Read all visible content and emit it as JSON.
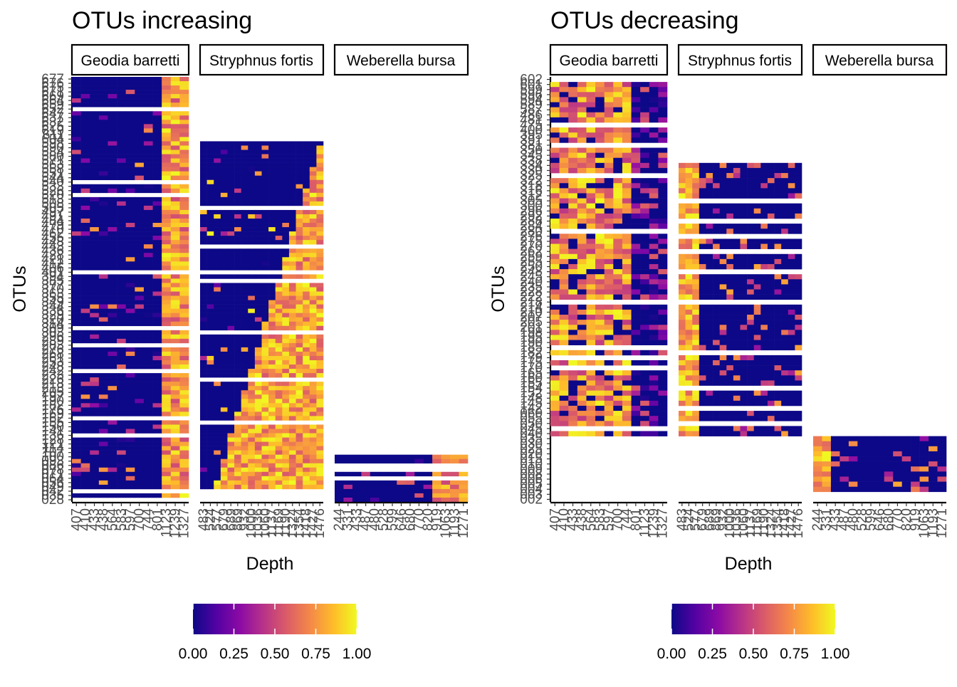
{
  "panels": [
    {
      "title": "OTUs increasing",
      "xlabel": "Depth",
      "ylabel": "OTUs",
      "facets": [
        {
          "label": "Geodia barretti",
          "depths": [
            "407",
            "410",
            "433",
            "438",
            "564",
            "583",
            "597",
            "700",
            "744",
            "801",
            "1123",
            "1239",
            "1327"
          ]
        },
        {
          "label": "Stryphnus fortis",
          "depths": [
            "483",
            "524",
            "577",
            "679",
            "689",
            "869",
            "932",
            "1000",
            "1036",
            "1060",
            "1137",
            "1169",
            "1190",
            "1324",
            "1354",
            "1418",
            "1427",
            "1476"
          ]
        },
        {
          "label": "Weberella bursa",
          "depths": [
            "244",
            "331",
            "433",
            "487",
            "480",
            "528",
            "599",
            "646",
            "680",
            "770",
            "820",
            "919",
            "1063",
            "1193",
            "1271"
          ]
        }
      ],
      "y_ticks": [
        "677",
        "676",
        "675",
        "671",
        "669",
        "664",
        "659",
        "652",
        "647",
        "637",
        "632",
        "625",
        "619",
        "611",
        "604",
        "598",
        "590",
        "584",
        "580",
        "571",
        "563",
        "558",
        "551",
        "544",
        "540",
        "533",
        "526",
        "520",
        "513",
        "508",
        "505",
        "497",
        "491",
        "484",
        "479",
        "470",
        "462",
        "455",
        "448",
        "443",
        "436",
        "428",
        "421",
        "412",
        "406",
        "401",
        "394",
        "385",
        "377",
        "370",
        "363",
        "355",
        "349",
        "344",
        "336",
        "329",
        "320",
        "314",
        "309",
        "303",
        "296",
        "289",
        "283",
        "276",
        "268",
        "261",
        "253",
        "248",
        "242",
        "233",
        "226",
        "218",
        "213",
        "205",
        "197",
        "190",
        "182",
        "176",
        "169",
        "162",
        "155",
        "150",
        "141",
        "136",
        "128",
        "121",
        "114",
        "107",
        "100",
        "093",
        "086",
        "078",
        "071",
        "064",
        "056",
        "049",
        "042",
        "035",
        "028"
      ]
    },
    {
      "title": "OTUs decreasing",
      "xlabel": "Depth",
      "ylabel": "OTUs",
      "facets": [
        {
          "label": "Geodia barretti",
          "depths": [
            "407",
            "410",
            "433",
            "438",
            "564",
            "583",
            "597",
            "700",
            "744",
            "801",
            "1123",
            "1239",
            "1327"
          ]
        },
        {
          "label": "Stryphnus fortis",
          "depths": [
            "483",
            "524",
            "577",
            "679",
            "689",
            "869",
            "932",
            "1000",
            "1036",
            "1060",
            "1137",
            "1169",
            "1190",
            "1324",
            "1354",
            "1418",
            "1427",
            "1476"
          ]
        },
        {
          "label": "Weberella bursa",
          "depths": [
            "244",
            "331",
            "433",
            "487",
            "480",
            "528",
            "599",
            "646",
            "680",
            "770",
            "820",
            "919",
            "1063",
            "1193",
            "1271"
          ]
        }
      ],
      "y_ticks": [
        "602",
        "601",
        "599",
        "596",
        "594",
        "589",
        "587",
        "486",
        "481",
        "475",
        "400",
        "395",
        "391",
        "381",
        "350",
        "345",
        "338",
        "334",
        "330",
        "325",
        "322",
        "318",
        "316",
        "312",
        "305",
        "300",
        "296",
        "292",
        "288",
        "284",
        "280",
        "276",
        "275",
        "270",
        "262",
        "259",
        "255",
        "250",
        "248",
        "245",
        "240",
        "235",
        "228",
        "222",
        "218",
        "214",
        "210",
        "207",
        "205",
        "201",
        "198",
        "195",
        "190",
        "185",
        "182",
        "179",
        "175",
        "170",
        "165",
        "160",
        "155",
        "154",
        "152",
        "148",
        "145",
        "142",
        "060",
        "055",
        "050",
        "045",
        "040",
        "035",
        "030",
        "025",
        "020",
        "015",
        "010",
        "009",
        "008",
        "006",
        "005",
        "004",
        "003",
        "002"
      ]
    }
  ],
  "legend": {
    "ticks": [
      "0.00",
      "0.25",
      "0.50",
      "0.75",
      "1.00"
    ],
    "colors": [
      "#0d0887",
      "#5302a3",
      "#8b0aa5",
      "#b83289",
      "#db5c68",
      "#f48849",
      "#febc2a",
      "#f0f921"
    ]
  },
  "chart_data": [
    {
      "type": "heatmap",
      "title": "OTUs increasing",
      "xlabel": "Depth",
      "ylabel": "OTUs",
      "value_range": [
        0,
        1
      ],
      "colorscale": "plasma",
      "facets": [
        {
          "label": "Geodia barretti",
          "active_rows": [
            0,
            97
          ],
          "pattern": "low values at shallow depths, high values at the deepest depths (1123-1327)"
        },
        {
          "label": "Stryphnus fortis",
          "active_rows": [
            15,
            95
          ],
          "pattern": "diagonal: high values appear at progressively shallower depths for lower rows"
        },
        {
          "label": "Weberella bursa",
          "active_rows": [
            88,
            99
          ],
          "pattern": "mostly low, high values at deepest depths"
        }
      ]
    },
    {
      "type": "heatmap",
      "title": "OTUs decreasing",
      "xlabel": "Depth",
      "ylabel": "OTUs",
      "value_range": [
        0,
        1
      ],
      "colorscale": "plasma",
      "facets": [
        {
          "label": "Geodia barretti",
          "active_rows": [
            0,
            70
          ],
          "pattern": "high values at shallow depths, low at deepest depths"
        },
        {
          "label": "Stryphnus fortis",
          "active_rows": [
            17,
            70
          ],
          "pattern": "high values at shallowest depths, low elsewhere"
        },
        {
          "label": "Weberella bursa",
          "active_rows": [
            71,
            84
          ],
          "pattern": "high values at shallowest depth, low elsewhere"
        }
      ]
    }
  ]
}
